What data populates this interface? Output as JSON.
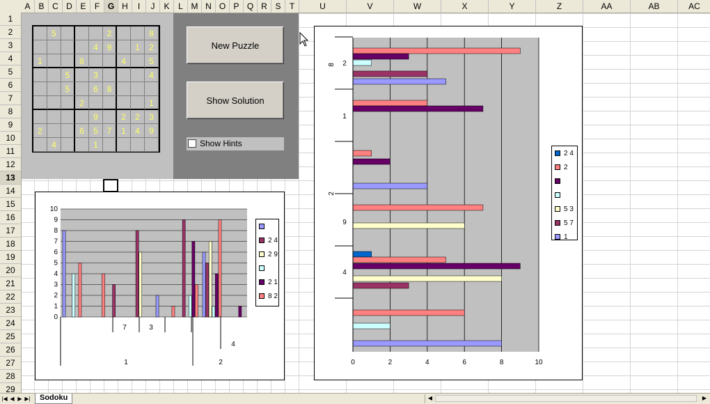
{
  "sheet": {
    "columns": [
      "A",
      "B",
      "C",
      "D",
      "E",
      "F",
      "G",
      "H",
      "I",
      "J",
      "K",
      "L",
      "M",
      "N",
      "O",
      "P",
      "Q",
      "R",
      "S",
      "T",
      "U",
      "V",
      "W",
      "X",
      "Y",
      "Z",
      "AA",
      "AB",
      "AC"
    ],
    "selected_column": "G",
    "rows": [
      "1",
      "2",
      "3",
      "4",
      "5",
      "6",
      "7",
      "8",
      "9",
      "10",
      "11",
      "12",
      "13",
      "14",
      "15",
      "16",
      "17",
      "18",
      "19",
      "20",
      "21",
      "22",
      "23",
      "24",
      "25",
      "26",
      "27",
      "28",
      "29"
    ],
    "selected_row": "13",
    "tab_name": "Sodoku"
  },
  "sudoku": {
    "grid": [
      [
        "",
        "5",
        "",
        "",
        "",
        "2",
        "",
        "",
        "8"
      ],
      [
        "",
        "",
        "",
        "",
        "4",
        "9",
        "",
        "1",
        "2"
      ],
      [
        "1",
        "",
        "",
        "8",
        "",
        "",
        "4",
        "",
        "5"
      ],
      [
        "",
        "",
        "5",
        "",
        "3",
        "",
        "",
        "",
        "4"
      ],
      [
        "",
        "",
        "5",
        "",
        "6",
        "8",
        "",
        "",
        ""
      ],
      [
        "",
        "",
        "",
        "2",
        "",
        "",
        "",
        "",
        "1"
      ],
      [
        "",
        "",
        "",
        "",
        "9",
        "",
        "2",
        "2",
        "3"
      ],
      [
        "2",
        "",
        "",
        "6",
        "5",
        "7",
        "1",
        "4",
        "9"
      ],
      [
        "",
        "4",
        "",
        "",
        "1",
        "",
        "",
        "",
        ""
      ]
    ],
    "digit_color": "#ffff66"
  },
  "controls": {
    "new_puzzle": "New Puzzle",
    "show_solution": "Show Solution",
    "show_hints": "Show Hints"
  },
  "chart_data": [
    {
      "type": "bar",
      "orientation": "vertical",
      "ylim": [
        0,
        10
      ],
      "yticks": [
        0,
        1,
        2,
        3,
        4,
        5,
        6,
        7,
        8,
        9,
        10
      ],
      "category_labels_inner": [
        "7",
        "3"
      ],
      "category_labels_mid": [
        "4"
      ],
      "category_labels_outer": [
        "1",
        "2"
      ],
      "legend": [
        {
          "label": "",
          "color": "#9999ff"
        },
        {
          "label": "2 4",
          "color": "#993366"
        },
        {
          "label": "2 9",
          "color": "#ffffcc"
        },
        {
          "label": "",
          "color": "#ccffff"
        },
        {
          "label": "2 1",
          "color": "#660066"
        },
        {
          "label": "8 2",
          "color": "#ff8080"
        }
      ],
      "series_colors": [
        "#9999ff",
        "#993366",
        "#ffffcc",
        "#ccffff",
        "#660066",
        "#ff8080"
      ],
      "groups": [
        [
          8,
          0,
          0,
          4,
          0,
          5
        ],
        [
          0,
          0,
          0,
          0,
          0,
          4
        ],
        [
          0,
          3,
          0,
          0,
          0,
          0
        ],
        [
          0,
          8,
          6,
          0,
          0,
          0
        ],
        [
          2,
          0,
          0,
          0,
          0,
          1
        ],
        [
          0,
          9,
          0,
          2,
          7,
          3
        ],
        [
          6,
          5,
          7,
          1,
          4,
          9
        ],
        [
          0,
          0,
          0,
          0,
          1,
          0
        ]
      ]
    },
    {
      "type": "bar",
      "orientation": "horizontal",
      "xlim": [
        0,
        10
      ],
      "xticks": [
        0,
        2,
        4,
        6,
        8,
        10
      ],
      "category_labels_inner": [
        "2",
        "1",
        "9",
        "4"
      ],
      "category_labels_outer": [
        "8",
        "2"
      ],
      "legend": [
        {
          "label": "2 4",
          "color": "#0066cc"
        },
        {
          "label": "2",
          "color": "#ff8080"
        },
        {
          "label": "",
          "color": "#660066"
        },
        {
          "label": "",
          "color": "#ccffff"
        },
        {
          "label": "5 3",
          "color": "#ffffcc"
        },
        {
          "label": "5 7",
          "color": "#993366"
        },
        {
          "label": "1",
          "color": "#9999ff"
        }
      ],
      "bars": [
        {
          "color": "#ff8080",
          "value": 9
        },
        {
          "color": "#660066",
          "value": 3
        },
        {
          "color": "#ccffff",
          "value": 1
        },
        {
          "color": "#993366",
          "value": 4
        },
        {
          "color": "#9999ff",
          "value": 5
        },
        {
          "color": "#ff8080",
          "value": 4
        },
        {
          "color": "#660066",
          "value": 7
        },
        {
          "color": "#ff8080",
          "value": 1
        },
        {
          "color": "#660066",
          "value": 2
        },
        {
          "color": "#9999ff",
          "value": 4
        },
        {
          "color": "#ff8080",
          "value": 7
        },
        {
          "color": "#ffffcc",
          "value": 6
        },
        {
          "color": "#0066cc",
          "value": 1
        },
        {
          "color": "#ff8080",
          "value": 5
        },
        {
          "color": "#660066",
          "value": 9
        },
        {
          "color": "#ffffcc",
          "value": 8
        },
        {
          "color": "#993366",
          "value": 3
        },
        {
          "color": "#ff8080",
          "value": 6
        },
        {
          "color": "#ccffff",
          "value": 2
        },
        {
          "color": "#9999ff",
          "value": 8
        }
      ]
    }
  ]
}
